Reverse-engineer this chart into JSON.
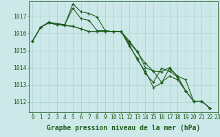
{
  "background_color": "#cce8e8",
  "grid_color": "#aad0d0",
  "line_color": "#1e5c1e",
  "xlabel": "Graphe pression niveau de la mer (hPa)",
  "xlabel_fontsize": 7,
  "tick_fontsize": 5.8,
  "ytick_labels": [
    1012,
    1013,
    1014,
    1015,
    1016,
    1017
  ],
  "ylim": [
    1011.4,
    1017.85
  ],
  "xlim": [
    -0.5,
    23.0
  ],
  "series": [
    [
      1015.55,
      1016.35,
      1016.65,
      1016.55,
      1016.5,
      1017.45,
      1016.85,
      1016.75,
      1016.15,
      1016.15,
      1016.1,
      1016.1,
      1015.55,
      1014.95,
      1014.0,
      1013.8,
      1013.75,
      1014.0,
      1013.5,
      1013.3,
      1012.05,
      1012.05,
      1011.65
    ],
    [
      1015.55,
      1016.35,
      1016.6,
      1016.55,
      1016.5,
      1017.7,
      1017.25,
      1017.15,
      1016.95,
      1016.15,
      1016.1,
      1016.1,
      1015.35,
      1014.45,
      1013.8,
      1012.85,
      1013.1,
      1013.95,
      1013.5,
      1012.65,
      1012.05,
      1012.05,
      1011.65
    ],
    [
      1015.55,
      1016.35,
      1016.6,
      1016.5,
      1016.45,
      1016.4,
      1016.25,
      1016.1,
      1016.1,
      1016.1,
      1016.1,
      1016.1,
      1015.45,
      1014.9,
      1014.25,
      1013.8,
      1013.15,
      1013.5,
      1013.3,
      1012.65,
      1012.05,
      1012.05,
      1011.65
    ],
    [
      1015.55,
      1016.35,
      1016.6,
      1016.5,
      1016.45,
      1016.4,
      1016.25,
      1016.1,
      1016.1,
      1016.1,
      1016.1,
      1016.1,
      1015.25,
      1014.55,
      1013.65,
      1013.15,
      1013.95,
      1013.8,
      1013.45,
      1012.65,
      1012.05,
      1012.05,
      1011.65
    ]
  ]
}
